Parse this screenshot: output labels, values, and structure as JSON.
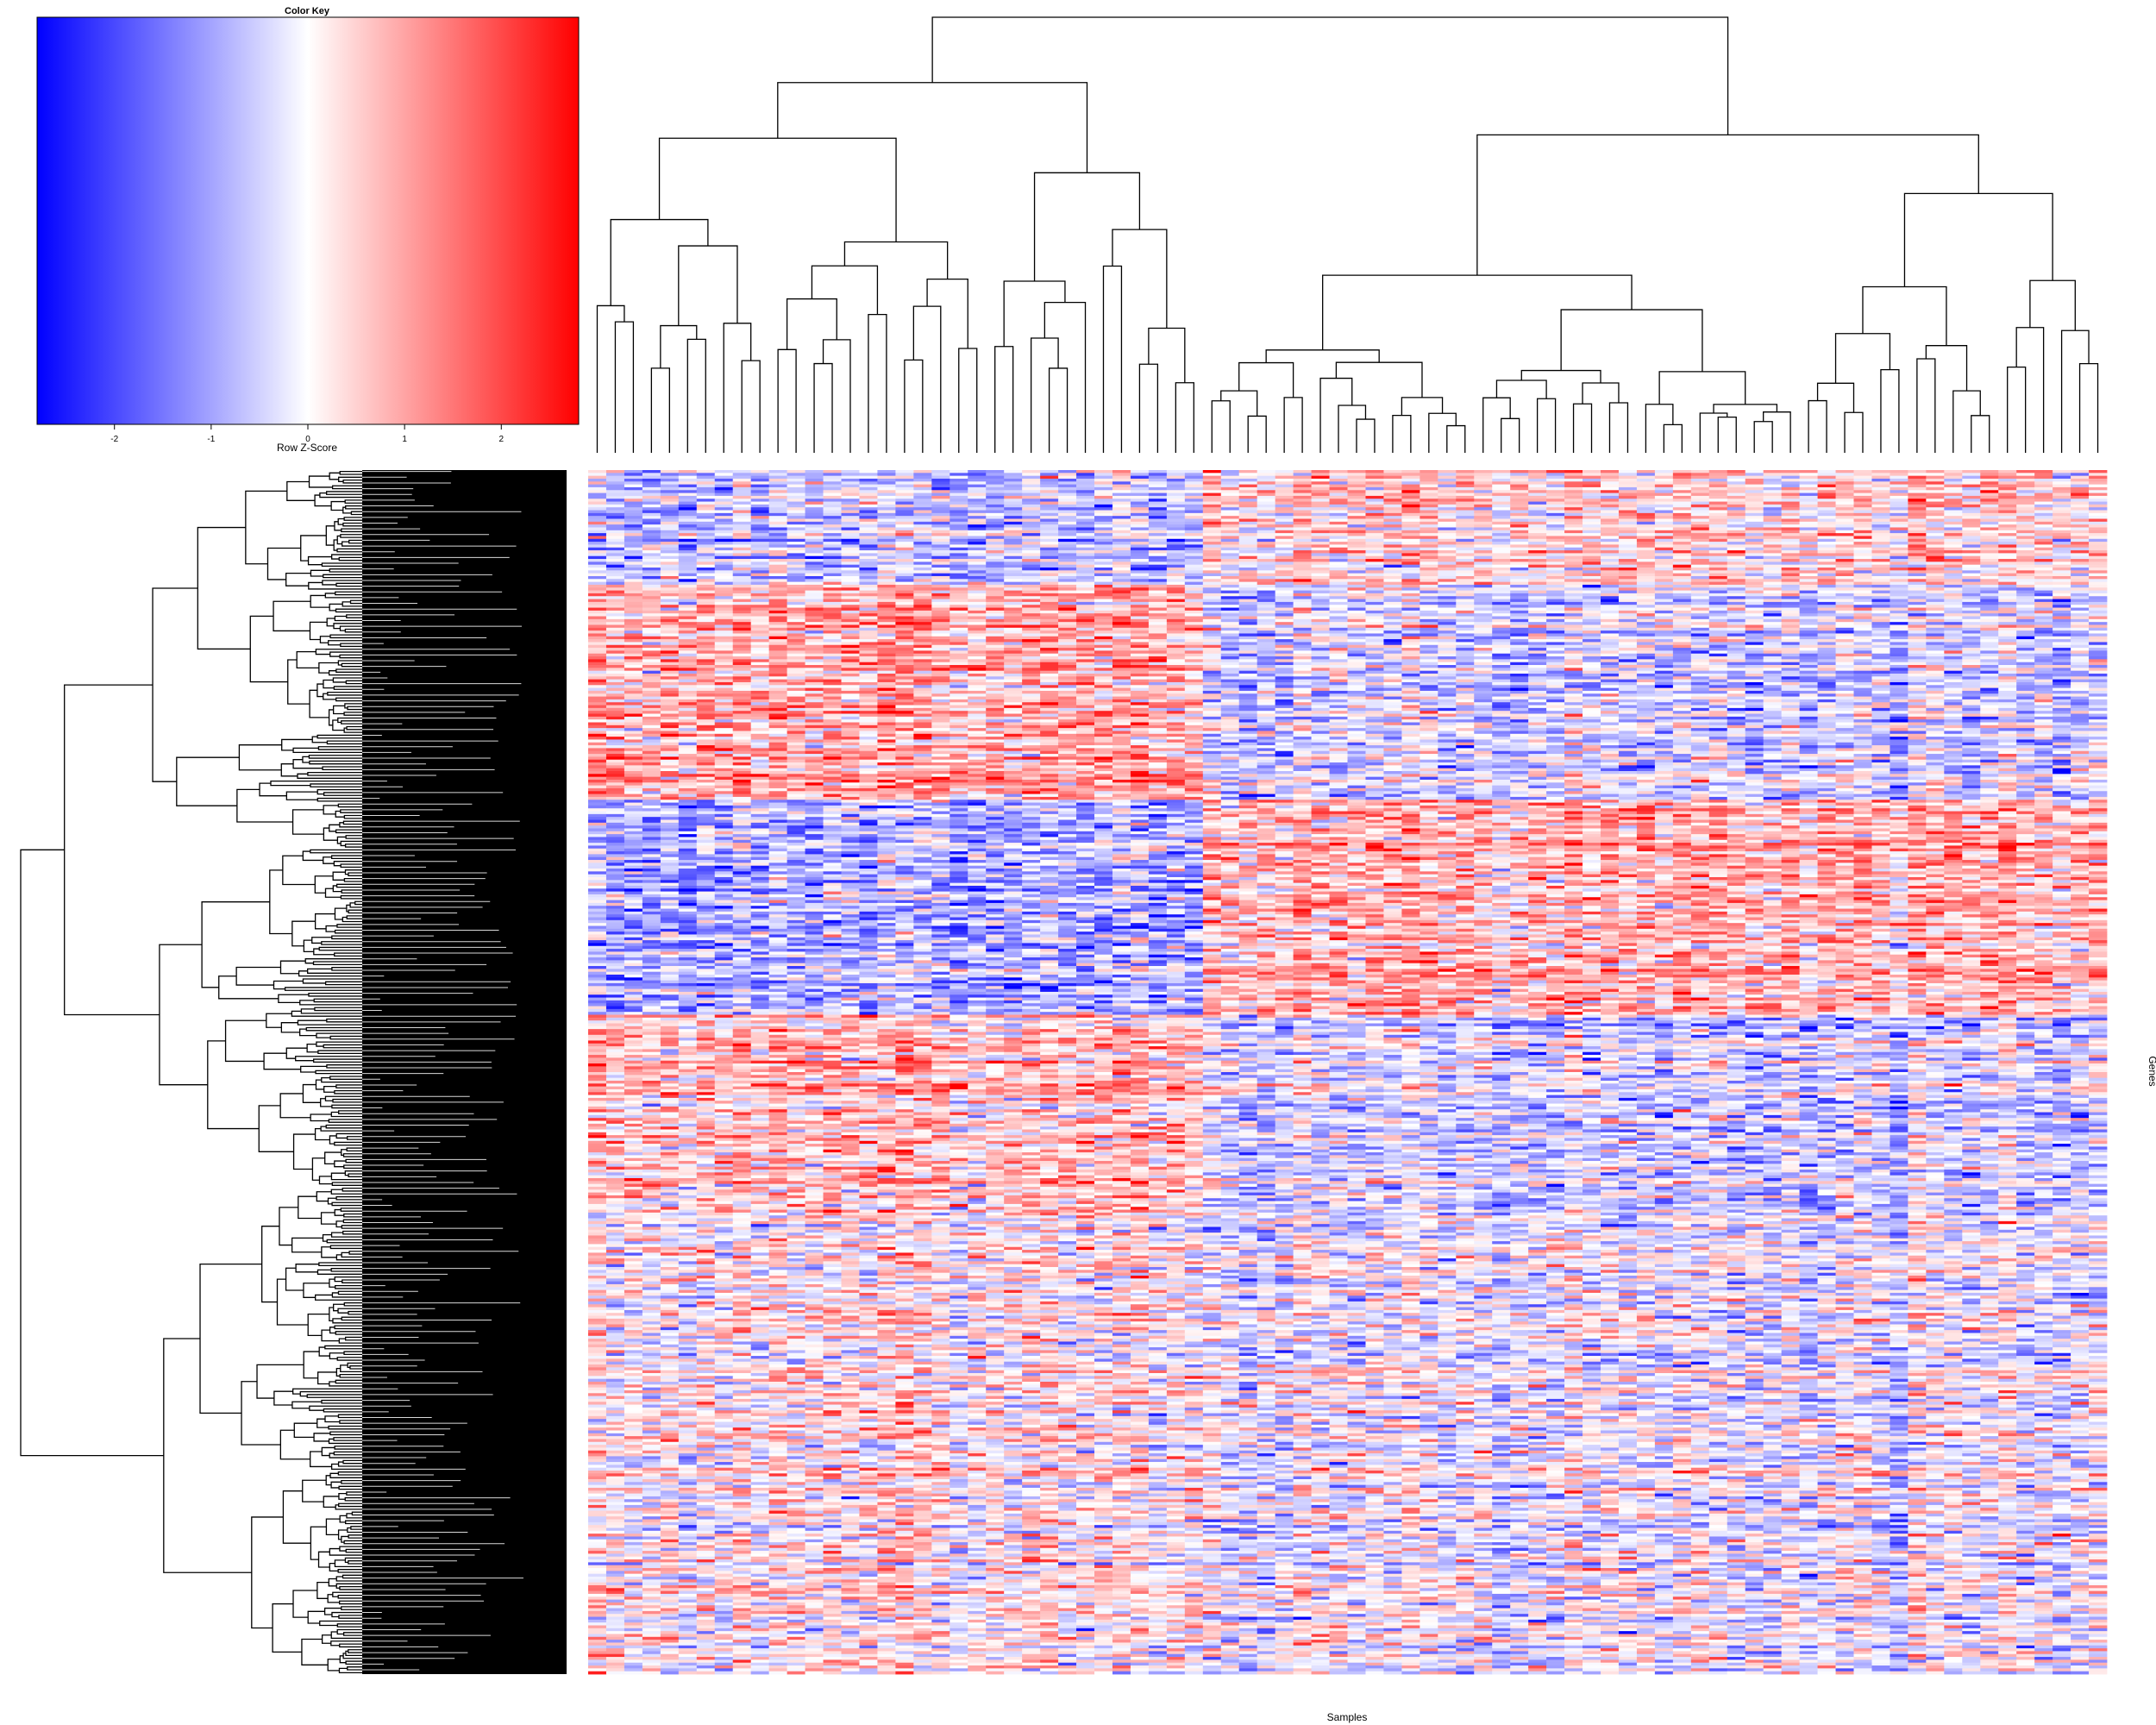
{
  "chart_data": [
    {
      "type": "heatmap",
      "title": "",
      "xlabel": "Samples",
      "ylabel": "Genes",
      "n_samples": 84,
      "n_genes": 420,
      "row_dendrogram": true,
      "column_dendrogram": true,
      "color_scale": {
        "low": "#0000ff",
        "mid": "#ffffff",
        "high": "#ff0000"
      },
      "column_clusters": [
        {
          "from": 1,
          "to": 34
        },
        {
          "from": 35,
          "to": 84
        }
      ],
      "row_blocks": [
        {
          "from": 1,
          "to": 40,
          "pattern": [
            -0.6,
            0.4
          ]
        },
        {
          "from": 41,
          "to": 115,
          "pattern": [
            0.9,
            -0.4
          ]
        },
        {
          "from": 116,
          "to": 190,
          "pattern": [
            -0.9,
            0.7
          ]
        },
        {
          "from": 191,
          "to": 260,
          "pattern": [
            0.6,
            -0.5
          ]
        },
        {
          "from": 261,
          "to": 420,
          "pattern": [
            0.2,
            -0.15
          ]
        }
      ]
    },
    {
      "type": "heatmap",
      "title": "Color Key",
      "xlabel": "Row Z-Score",
      "xlim": [
        -2.8,
        2.8
      ],
      "ticks": [
        "-2",
        "-1",
        "0",
        "1",
        "2"
      ],
      "tick_values": [
        -2,
        -1,
        0,
        1,
        2
      ],
      "colors": [
        "#0000ff",
        "#ffffff",
        "#ff0000"
      ]
    }
  ]
}
